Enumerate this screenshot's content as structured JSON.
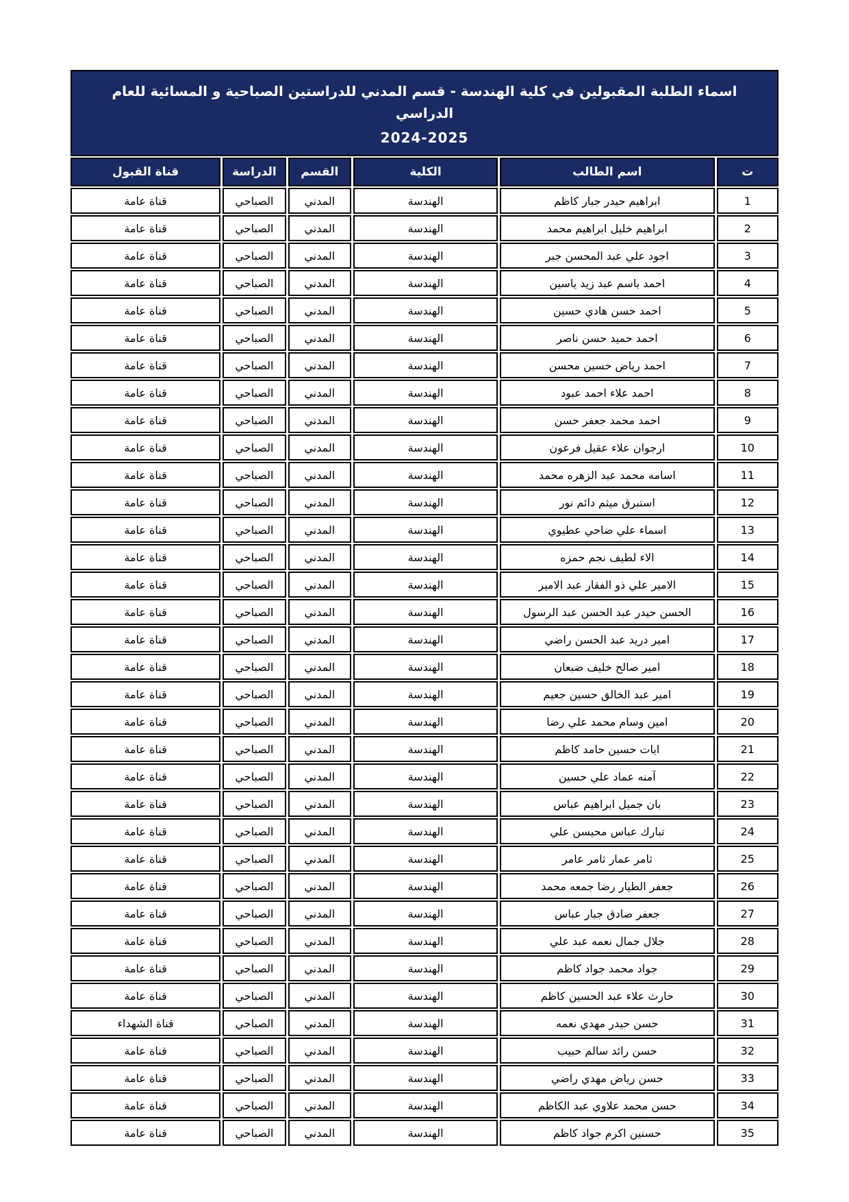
{
  "theme": {
    "header_bg": "#1a2a63",
    "header_text": "#ffffff",
    "border_color": "#000000",
    "page_bg": "#ffffff"
  },
  "table": {
    "title_line1": "اسماء الطلبة المقبولين في كلية الهندسة - قسم المدني للدراستين الصباحية و المسائية للعام الدراسي",
    "title_line2": "2024-2025",
    "columns": [
      "ت",
      "اسم الطالب",
      "الكلية",
      "القسم",
      "الدراسة",
      "قناة القبول"
    ],
    "rows": [
      {
        "no": "1",
        "name": "ابراهيم حيدر جبار كاظم",
        "college": "الهندسة",
        "dept": "المدني",
        "study": "الصباحي",
        "channel": "قناة عامة"
      },
      {
        "no": "2",
        "name": "ابراهيم خليل ابراهيم محمد",
        "college": "الهندسة",
        "dept": "المدني",
        "study": "الصباحي",
        "channel": "قناة عامة"
      },
      {
        "no": "3",
        "name": "اجود علي عبد المحسن جبر",
        "college": "الهندسة",
        "dept": "المدني",
        "study": "الصباحي",
        "channel": "قناة عامة"
      },
      {
        "no": "4",
        "name": "احمد باسم عبد زيد ياسين",
        "college": "الهندسة",
        "dept": "المدني",
        "study": "الصباحي",
        "channel": "قناة عامة"
      },
      {
        "no": "5",
        "name": "احمد حسن هادي حسين",
        "college": "الهندسة",
        "dept": "المدني",
        "study": "الصباحي",
        "channel": "قناة عامة"
      },
      {
        "no": "6",
        "name": "احمد حميد حسن ناصر",
        "college": "الهندسة",
        "dept": "المدني",
        "study": "الصباحي",
        "channel": "قناة عامة"
      },
      {
        "no": "7",
        "name": "احمد رياض حسين محسن",
        "college": "الهندسة",
        "dept": "المدني",
        "study": "الصباحي",
        "channel": "قناة عامة"
      },
      {
        "no": "8",
        "name": "احمد علاء احمد عبود",
        "college": "الهندسة",
        "dept": "المدني",
        "study": "الصباحي",
        "channel": "قناة عامة"
      },
      {
        "no": "9",
        "name": "احمد محمد جعفر حسن",
        "college": "الهندسة",
        "dept": "المدني",
        "study": "الصباحي",
        "channel": "قناة عامة"
      },
      {
        "no": "10",
        "name": "ارجوان علاء عقيل فرعون",
        "college": "الهندسة",
        "dept": "المدني",
        "study": "الصباحي",
        "channel": "قناة عامة"
      },
      {
        "no": "11",
        "name": "اسامه محمد عبد الزهره محمد",
        "college": "الهندسة",
        "dept": "المدني",
        "study": "الصباحي",
        "channel": "قناة عامة"
      },
      {
        "no": "12",
        "name": "استبرق ميثم دائم نور",
        "college": "الهندسة",
        "dept": "المدني",
        "study": "الصباحي",
        "channel": "قناة عامة"
      },
      {
        "no": "13",
        "name": "اسماء علي ضاحي عطيوي",
        "college": "الهندسة",
        "dept": "المدني",
        "study": "الصباحي",
        "channel": "قناة عامة"
      },
      {
        "no": "14",
        "name": "الاء لطيف نجم حمزه",
        "college": "الهندسة",
        "dept": "المدني",
        "study": "الصباحي",
        "channel": "قناة عامة"
      },
      {
        "no": "15",
        "name": "الامير علي ذو الفقار عبد الامير",
        "college": "الهندسة",
        "dept": "المدني",
        "study": "الصباحي",
        "channel": "قناة عامة"
      },
      {
        "no": "16",
        "name": "الحسن حيدر عبد الحسن عبد الرسول",
        "college": "الهندسة",
        "dept": "المدني",
        "study": "الصباحي",
        "channel": "قناة عامة"
      },
      {
        "no": "17",
        "name": "امير دريد عبد الحسن راضي",
        "college": "الهندسة",
        "dept": "المدني",
        "study": "الصباحي",
        "channel": "قناة عامة"
      },
      {
        "no": "18",
        "name": "امير صالح خليف ضبعان",
        "college": "الهندسة",
        "dept": "المدني",
        "study": "الصباحي",
        "channel": "قناة عامة"
      },
      {
        "no": "19",
        "name": "امير عبد الخالق حسين جعيم",
        "college": "الهندسة",
        "dept": "المدني",
        "study": "الصباحي",
        "channel": "قناة عامة"
      },
      {
        "no": "20",
        "name": "امين وسام محمد علي رضا",
        "college": "الهندسة",
        "dept": "المدني",
        "study": "الصباحي",
        "channel": "قناة عامة"
      },
      {
        "no": "21",
        "name": "ايات حسين حامد كاظم",
        "college": "الهندسة",
        "dept": "المدني",
        "study": "الصباحي",
        "channel": "قناة عامة"
      },
      {
        "no": "22",
        "name": "آمنه عماد علي حسين",
        "college": "الهندسة",
        "dept": "المدني",
        "study": "الصباحي",
        "channel": "قناة عامة"
      },
      {
        "no": "23",
        "name": "بان جميل ابراهيم عباس",
        "college": "الهندسة",
        "dept": "المدني",
        "study": "الصباحي",
        "channel": "قناة عامة"
      },
      {
        "no": "24",
        "name": "تبارك عباس محيسن علي",
        "college": "الهندسة",
        "dept": "المدني",
        "study": "الصباحي",
        "channel": "قناة عامة"
      },
      {
        "no": "25",
        "name": "ثامر عمار ثامر عامر",
        "college": "الهندسة",
        "dept": "المدني",
        "study": "الصباحي",
        "channel": "قناة عامة"
      },
      {
        "no": "26",
        "name": "جعفر الطيار رضا جمعه محمد",
        "college": "الهندسة",
        "dept": "المدني",
        "study": "الصباحي",
        "channel": "قناة عامة"
      },
      {
        "no": "27",
        "name": "جعفر صادق جبار عباس",
        "college": "الهندسة",
        "dept": "المدني",
        "study": "الصباحي",
        "channel": "قناة عامة"
      },
      {
        "no": "28",
        "name": "جلال جمال نعمه عبد علي",
        "college": "الهندسة",
        "dept": "المدني",
        "study": "الصباحي",
        "channel": "قناة عامة"
      },
      {
        "no": "29",
        "name": "جواد محمد جواد كاظم",
        "college": "الهندسة",
        "dept": "المدني",
        "study": "الصباحي",
        "channel": "قناة عامة"
      },
      {
        "no": "30",
        "name": "حارث علاء عبد الحسين كاظم",
        "college": "الهندسة",
        "dept": "المدني",
        "study": "الصباحي",
        "channel": "قناة عامة"
      },
      {
        "no": "31",
        "name": "حسن حيدر مهدي نعمه",
        "college": "الهندسة",
        "dept": "المدني",
        "study": "الصباحي",
        "channel": "قناة الشهداء"
      },
      {
        "no": "32",
        "name": "حسن رائد سالم حبيب",
        "college": "الهندسة",
        "dept": "المدني",
        "study": "الصباحي",
        "channel": "قناة عامة"
      },
      {
        "no": "33",
        "name": "حسن رياض مهدي راضي",
        "college": "الهندسة",
        "dept": "المدني",
        "study": "الصباحي",
        "channel": "قناة عامة"
      },
      {
        "no": "34",
        "name": "حسن محمد علاوي عبد الكاظم",
        "college": "الهندسة",
        "dept": "المدني",
        "study": "الصباحي",
        "channel": "قناة عامة"
      },
      {
        "no": "35",
        "name": "حسنين اكرم جواد كاظم",
        "college": "الهندسة",
        "dept": "المدني",
        "study": "الصباحي",
        "channel": "قناة عامة"
      }
    ]
  }
}
